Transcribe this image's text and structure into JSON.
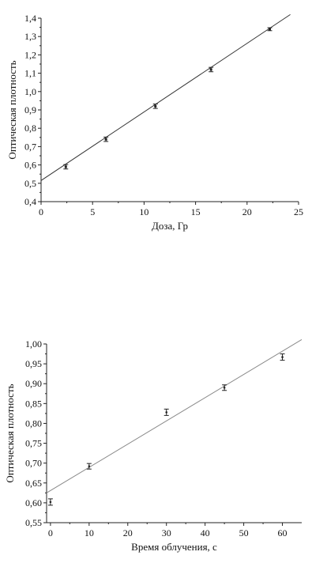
{
  "chart_data": [
    {
      "type": "scatter",
      "xlabel": "Доза, Гр",
      "ylabel": "Оптическая плотность",
      "xlim": [
        0,
        25
      ],
      "ylim": [
        0.4,
        1.4
      ],
      "x_ticks": [
        0,
        5,
        10,
        15,
        20,
        25
      ],
      "y_ticks": [
        0.4,
        0.5,
        0.6,
        0.7,
        0.8,
        0.9,
        1.0,
        1.1,
        1.2,
        1.3,
        1.4
      ],
      "x_tick_labels": [
        "0",
        "5",
        "10",
        "15",
        "20",
        "25"
      ],
      "y_tick_labels": [
        "0,4",
        "0,5",
        "0,6",
        "0,7",
        "0,8",
        "0,9",
        "1,0",
        "1,1",
        "1,2",
        "1,3",
        "1,4"
      ],
      "points": [
        {
          "x": 2.4,
          "y": 0.59,
          "err": 0.012
        },
        {
          "x": 6.3,
          "y": 0.74,
          "err": 0.012
        },
        {
          "x": 11.1,
          "y": 0.92,
          "err": 0.012
        },
        {
          "x": 16.5,
          "y": 1.12,
          "err": 0.012
        },
        {
          "x": 22.2,
          "y": 1.34,
          "err": 0.008
        }
      ],
      "fit_line": {
        "x": [
          0,
          24.2
        ],
        "y": [
          0.515,
          1.42
        ]
      },
      "grid": false
    },
    {
      "type": "scatter",
      "xlabel": "Время облучения, с",
      "ylabel": "Оптическая плотность",
      "xlim": [
        -1,
        65
      ],
      "ylim": [
        0.55,
        1.0
      ],
      "x_ticks": [
        0,
        10,
        20,
        30,
        40,
        50,
        60
      ],
      "y_ticks": [
        0.55,
        0.6,
        0.65,
        0.7,
        0.75,
        0.8,
        0.85,
        0.9,
        0.95,
        1.0
      ],
      "x_tick_labels": [
        "0",
        "10",
        "20",
        "30",
        "40",
        "50",
        "60"
      ],
      "y_tick_labels": [
        "0,55",
        "0,60",
        "0,65",
        "0,70",
        "0,75",
        "0,80",
        "0,85",
        "0,90",
        "0,95",
        "1,00"
      ],
      "points": [
        {
          "x": 0,
          "y": 0.602,
          "err": 0.008
        },
        {
          "x": 10,
          "y": 0.692,
          "err": 0.007
        },
        {
          "x": 30,
          "y": 0.828,
          "err": 0.008
        },
        {
          "x": 45,
          "y": 0.89,
          "err": 0.007
        },
        {
          "x": 60,
          "y": 0.967,
          "err": 0.008
        }
      ],
      "fit_line": {
        "x": [
          -1,
          65
        ],
        "y": [
          0.625,
          1.011
        ]
      },
      "grid": false
    }
  ]
}
